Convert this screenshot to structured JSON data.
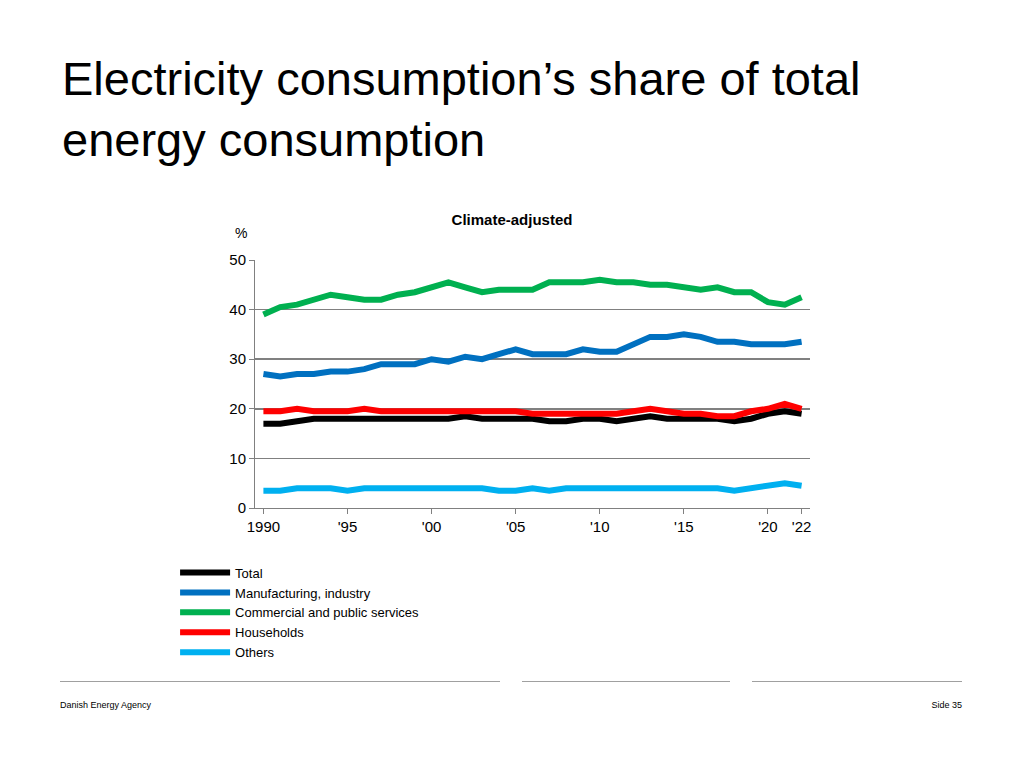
{
  "heading": "Electricity consumption’s share of total energy consumption",
  "footer": {
    "left": "Danish Energy Agency",
    "right": "Side 35"
  },
  "chart_data": {
    "type": "line",
    "title": "Climate-adjusted",
    "ylabel": "%",
    "x": [
      1990,
      1991,
      1992,
      1993,
      1994,
      1995,
      1996,
      1997,
      1998,
      1999,
      2000,
      2001,
      2002,
      2003,
      2004,
      2005,
      2006,
      2007,
      2008,
      2009,
      2010,
      2011,
      2012,
      2013,
      2014,
      2015,
      2016,
      2017,
      2018,
      2019,
      2020,
      2021,
      2022
    ],
    "xlim": [
      1989.5,
      2022.5
    ],
    "xticks": [
      {
        "value": 1990,
        "label": "1990"
      },
      {
        "value": 1995,
        "label": "'95"
      },
      {
        "value": 2000,
        "label": "'00"
      },
      {
        "value": 2005,
        "label": "'05"
      },
      {
        "value": 2010,
        "label": "'10"
      },
      {
        "value": 2015,
        "label": "'15"
      },
      {
        "value": 2020,
        "label": "'20"
      },
      {
        "value": 2022,
        "label": "'22"
      }
    ],
    "ylim": [
      0,
      50
    ],
    "yticks": [
      0,
      10,
      20,
      30,
      40,
      50
    ],
    "grid": true,
    "legend": "bottom",
    "series": [
      {
        "name": "Total",
        "color": "#000000",
        "values": [
          17,
          17,
          17.5,
          18,
          18,
          18,
          18,
          18,
          18,
          18,
          18,
          18,
          18.5,
          18,
          18,
          18,
          18,
          17.5,
          17.5,
          18,
          18,
          17.5,
          18,
          18.5,
          18,
          18,
          18,
          18,
          17.5,
          18,
          19,
          19.5,
          19
        ]
      },
      {
        "name": "Manufacturing, industry",
        "color": "#0070c0",
        "values": [
          27,
          26.5,
          27,
          27,
          27.5,
          27.5,
          28,
          29,
          29,
          29,
          30,
          29.5,
          30.5,
          30,
          31,
          32,
          31,
          31,
          31,
          32,
          31.5,
          31.5,
          33,
          34.5,
          34.5,
          35,
          34.5,
          33.5,
          33.5,
          33,
          33,
          33,
          33.5
        ]
      },
      {
        "name": "Commercial and public services",
        "color": "#00b050",
        "values": [
          39,
          40.5,
          41,
          42,
          43,
          42.5,
          42,
          42,
          43,
          43.5,
          44.5,
          45.5,
          44.5,
          43.5,
          44,
          44,
          44,
          45.5,
          45.5,
          45.5,
          46,
          45.5,
          45.5,
          45,
          45,
          44.5,
          44,
          44.5,
          43.5,
          43.5,
          41.5,
          41,
          42.5
        ]
      },
      {
        "name": "Households",
        "color": "#ff0000",
        "values": [
          19.5,
          19.5,
          20,
          19.5,
          19.5,
          19.5,
          20,
          19.5,
          19.5,
          19.5,
          19.5,
          19.5,
          19.5,
          19.5,
          19.5,
          19.5,
          19,
          19,
          19,
          19,
          19,
          19,
          19.5,
          20,
          19.5,
          19,
          19,
          18.5,
          18.5,
          19.5,
          20,
          21,
          20
        ]
      },
      {
        "name": "Others",
        "color": "#00b0f0",
        "values": [
          3.5,
          3.5,
          4,
          4,
          4,
          3.5,
          4,
          4,
          4,
          4,
          4,
          4,
          4,
          4,
          3.5,
          3.5,
          4,
          3.5,
          4,
          4,
          4,
          4,
          4,
          4,
          4,
          4,
          4,
          4,
          3.5,
          4,
          4.5,
          5,
          4.5
        ]
      }
    ]
  }
}
